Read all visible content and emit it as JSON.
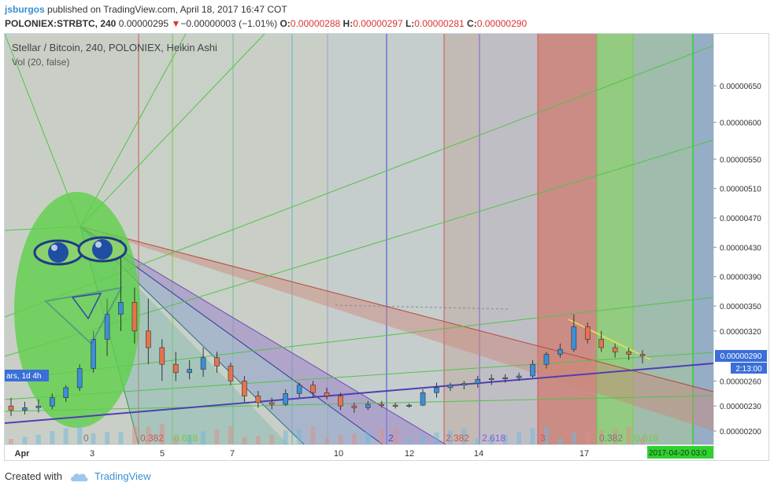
{
  "header": {
    "author": "jsburgos",
    "published_text": "published on TradingView.com, April 18, 2017 16:47 COT",
    "symbol": "POLONIEX:STRBTC, 240",
    "last": "0.00000295",
    "change": "−0.00000003 (−1.01%)",
    "o_label": "O:",
    "o_value": "0.00000288",
    "h_label": "H:",
    "h_value": "0.00000297",
    "l_label": "L:",
    "l_value": "0.00000281",
    "c_label": "C:",
    "c_value": "0.00000290"
  },
  "legend": {
    "title": "Stellar / Bitcoin, 240, POLONIEX, Heikin Ashi",
    "volume": "Vol (20, false)"
  },
  "footer": {
    "created_with": "Created with",
    "brand": "TradingView"
  },
  "chart_data": {
    "type": "candlestick",
    "y_axis_ticks": [
      "0.00000650",
      "0.00000600",
      "0.00000550",
      "0.00000510",
      "0.00000470",
      "0.00000430",
      "0.00000390",
      "0.00000350",
      "0.00000320",
      "0.00000260",
      "0.00000230",
      "0.00000200"
    ],
    "x_axis_ticks": [
      "Apr",
      "3",
      "5",
      "7",
      "10",
      "12",
      "14",
      "17"
    ],
    "current_price_label": "0.00000290",
    "countdown_label": "2:13:00",
    "cursor_date_label": "2017-04-20 03:0",
    "side_label": "ars, 1d 4h",
    "fib_labels": [
      {
        "text": "0",
        "color": "#7a7a7a"
      },
      {
        "text": "0.382",
        "color": "#d9534f"
      },
      {
        "text": "0.618",
        "color": "#7ac943"
      },
      {
        "text": "2",
        "color": "#3b4bd6"
      },
      {
        "text": "2.382",
        "color": "#d9534f"
      },
      {
        "text": "2.618",
        "color": "#8a5cd6"
      },
      {
        "text": "3",
        "color": "#d9534f"
      },
      {
        "text": "0.382",
        "color": "#7a7a7a"
      },
      {
        "text": "0.618",
        "color": "#7ac943"
      }
    ],
    "candles_approx": [
      {
        "o": 2.3,
        "h": 2.4,
        "l": 2.18,
        "c": 2.25
      },
      {
        "o": 2.25,
        "h": 2.35,
        "l": 2.2,
        "c": 2.28
      },
      {
        "o": 2.28,
        "h": 2.38,
        "l": 2.22,
        "c": 2.3
      },
      {
        "o": 2.3,
        "h": 2.45,
        "l": 2.26,
        "c": 2.4
      },
      {
        "o": 2.4,
        "h": 2.55,
        "l": 2.35,
        "c": 2.52
      },
      {
        "o": 2.52,
        "h": 2.8,
        "l": 2.48,
        "c": 2.75
      },
      {
        "o": 2.75,
        "h": 3.2,
        "l": 2.7,
        "c": 3.1
      },
      {
        "o": 3.1,
        "h": 3.6,
        "l": 2.9,
        "c": 3.4
      },
      {
        "o": 3.4,
        "h": 4.4,
        "l": 3.2,
        "c": 3.55
      },
      {
        "o": 3.55,
        "h": 3.75,
        "l": 3.05,
        "c": 3.2
      },
      {
        "o": 3.2,
        "h": 3.6,
        "l": 2.8,
        "c": 3.0
      },
      {
        "o": 3.0,
        "h": 3.1,
        "l": 2.6,
        "c": 2.8
      },
      {
        "o": 2.8,
        "h": 2.95,
        "l": 2.6,
        "c": 2.7
      },
      {
        "o": 2.7,
        "h": 2.85,
        "l": 2.62,
        "c": 2.74
      },
      {
        "o": 2.74,
        "h": 3.0,
        "l": 2.65,
        "c": 2.88
      },
      {
        "o": 2.88,
        "h": 2.95,
        "l": 2.7,
        "c": 2.78
      },
      {
        "o": 2.78,
        "h": 2.82,
        "l": 2.55,
        "c": 2.6
      },
      {
        "o": 2.6,
        "h": 2.66,
        "l": 2.35,
        "c": 2.42
      },
      {
        "o": 2.42,
        "h": 2.48,
        "l": 2.28,
        "c": 2.34
      },
      {
        "o": 2.34,
        "h": 2.4,
        "l": 2.26,
        "c": 2.32
      },
      {
        "o": 2.32,
        "h": 2.5,
        "l": 2.3,
        "c": 2.45
      },
      {
        "o": 2.45,
        "h": 2.58,
        "l": 2.4,
        "c": 2.55
      },
      {
        "o": 2.55,
        "h": 2.6,
        "l": 2.4,
        "c": 2.46
      },
      {
        "o": 2.46,
        "h": 2.52,
        "l": 2.38,
        "c": 2.42
      },
      {
        "o": 2.42,
        "h": 2.46,
        "l": 2.25,
        "c": 2.3
      },
      {
        "o": 2.3,
        "h": 2.34,
        "l": 2.22,
        "c": 2.28
      },
      {
        "o": 2.28,
        "h": 2.36,
        "l": 2.25,
        "c": 2.32
      },
      {
        "o": 2.32,
        "h": 2.36,
        "l": 2.28,
        "c": 2.31
      },
      {
        "o": 2.31,
        "h": 2.34,
        "l": 2.27,
        "c": 2.3
      },
      {
        "o": 2.3,
        "h": 2.33,
        "l": 2.28,
        "c": 2.31
      },
      {
        "o": 2.31,
        "h": 2.5,
        "l": 2.3,
        "c": 2.46
      },
      {
        "o": 2.46,
        "h": 2.58,
        "l": 2.4,
        "c": 2.52
      },
      {
        "o": 2.52,
        "h": 2.58,
        "l": 2.48,
        "c": 2.55
      },
      {
        "o": 2.55,
        "h": 2.6,
        "l": 2.5,
        "c": 2.57
      },
      {
        "o": 2.57,
        "h": 2.66,
        "l": 2.52,
        "c": 2.62
      },
      {
        "o": 2.62,
        "h": 2.68,
        "l": 2.55,
        "c": 2.63
      },
      {
        "o": 2.63,
        "h": 2.68,
        "l": 2.58,
        "c": 2.64
      },
      {
        "o": 2.64,
        "h": 2.7,
        "l": 2.6,
        "c": 2.66
      },
      {
        "o": 2.66,
        "h": 2.85,
        "l": 2.64,
        "c": 2.8
      },
      {
        "o": 2.8,
        "h": 2.95,
        "l": 2.75,
        "c": 2.92
      },
      {
        "o": 2.92,
        "h": 3.05,
        "l": 2.88,
        "c": 2.98
      },
      {
        "o": 2.98,
        "h": 3.4,
        "l": 2.95,
        "c": 3.25
      },
      {
        "o": 3.25,
        "h": 3.3,
        "l": 3.05,
        "c": 3.1
      },
      {
        "o": 3.1,
        "h": 3.2,
        "l": 2.95,
        "c": 3.0
      },
      {
        "o": 3.0,
        "h": 3.05,
        "l": 2.88,
        "c": 2.95
      },
      {
        "o": 2.95,
        "h": 3.0,
        "l": 2.85,
        "c": 2.92
      },
      {
        "o": 2.92,
        "h": 2.97,
        "l": 2.81,
        "c": 2.9
      }
    ]
  }
}
